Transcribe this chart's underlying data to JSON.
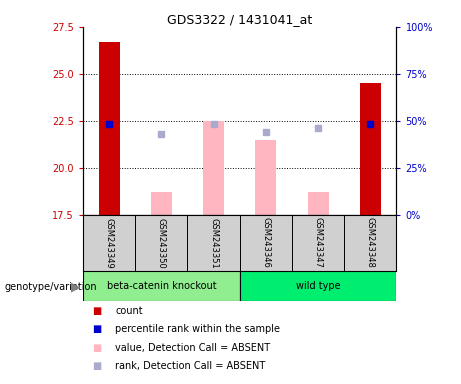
{
  "title": "GDS3322 / 1431041_at",
  "samples": [
    "GSM243349",
    "GSM243350",
    "GSM243351",
    "GSM243346",
    "GSM243347",
    "GSM243348"
  ],
  "ylim": [
    17.5,
    27.5
  ],
  "yticks_left": [
    17.5,
    20.0,
    22.5,
    25.0,
    27.5
  ],
  "yticks_right_pct": [
    0,
    25,
    50,
    75,
    100
  ],
  "left_color": "#CC0000",
  "right_color": "#0000CC",
  "bar_bottom": 17.5,
  "red_bars": {
    "GSM243349": 26.7,
    "GSM243348": 24.5
  },
  "blue_dots": {
    "GSM243349": 22.35,
    "GSM243348": 22.35
  },
  "pink_bars": {
    "GSM243350": 18.7,
    "GSM243351": 22.5,
    "GSM243346": 21.5,
    "GSM243347": 18.7
  },
  "lavender_dots": {
    "GSM243350": 21.8,
    "GSM243351": 22.35,
    "GSM243346": 21.9,
    "GSM243347": 22.1
  },
  "group_ko_color": "#90EE90",
  "group_wt_color": "#00EE70",
  "gray_label_color": "#D0D0D0",
  "background_color": "#FFFFFF",
  "bar_width": 0.4,
  "legend_labels": [
    "count",
    "percentile rank within the sample",
    "value, Detection Call = ABSENT",
    "rank, Detection Call = ABSENT"
  ],
  "legend_colors": [
    "#CC0000",
    "#0000CC",
    "#FFB6C1",
    "#AAAACC"
  ]
}
